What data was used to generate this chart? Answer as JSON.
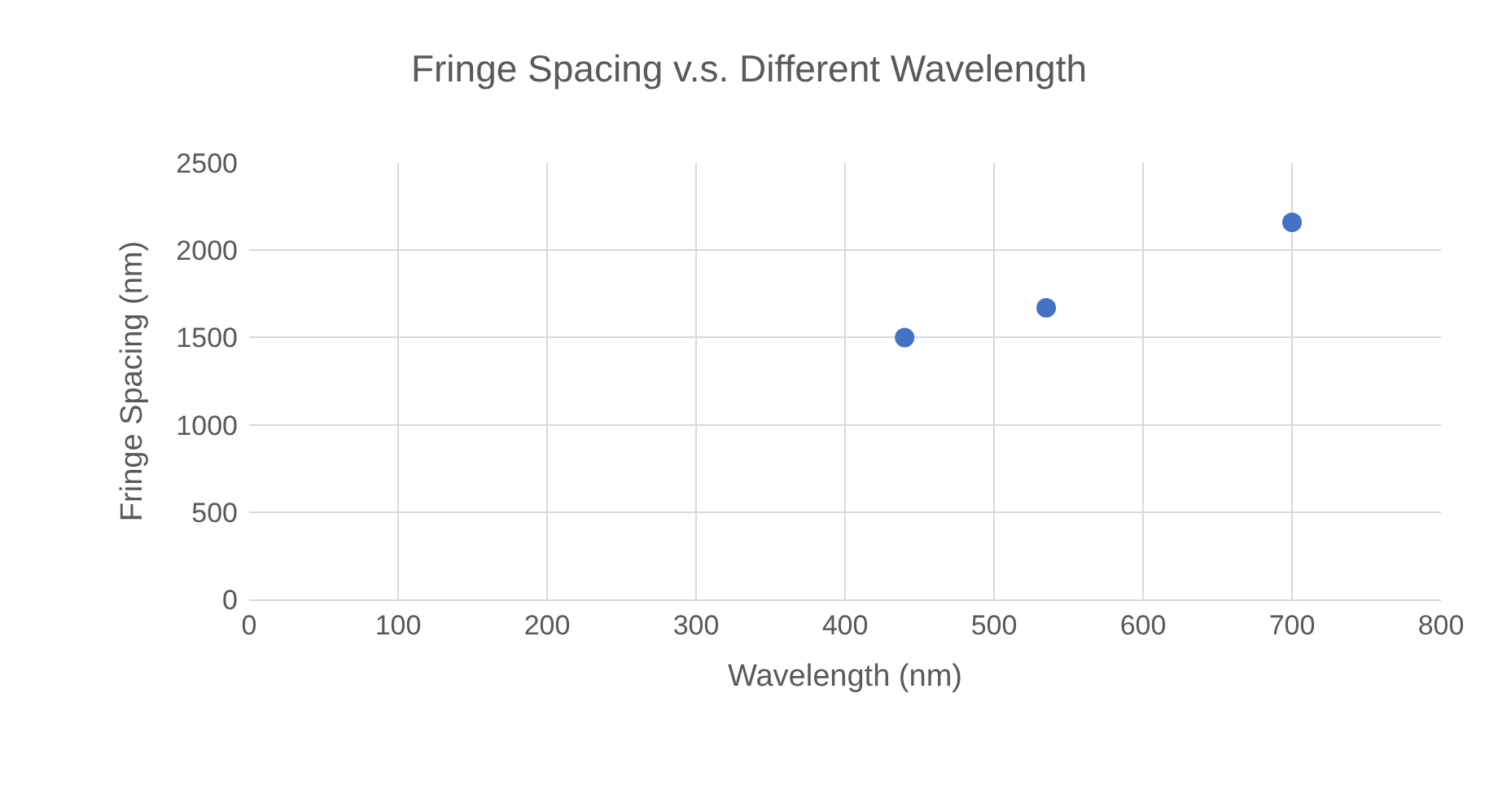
{
  "chart_data": {
    "type": "scatter",
    "title": "Fringe Spacing v.s. Different Wavelength",
    "xlabel": "Wavelength (nm)",
    "ylabel": "Fringe Spacing (nm)",
    "x": [
      440,
      535,
      700
    ],
    "series": [
      {
        "color": "#4472c4",
        "values": [
          1500,
          1670,
          2160
        ]
      }
    ],
    "xlim": [
      0,
      800
    ],
    "xticks": [
      0,
      100,
      200,
      300,
      400,
      500,
      600,
      700,
      800
    ],
    "ylim": [
      0,
      2500
    ],
    "yticks": [
      0,
      500,
      1000,
      1500,
      2000,
      2500
    ],
    "grid": true,
    "marker": "circle"
  }
}
